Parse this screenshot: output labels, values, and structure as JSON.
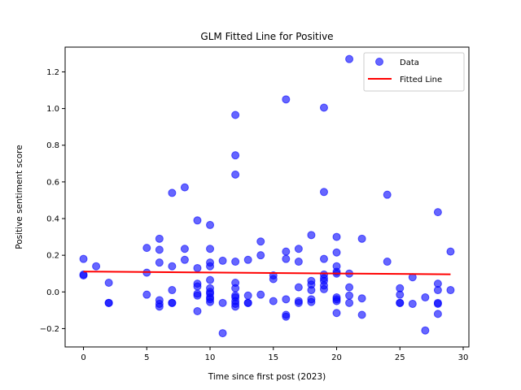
{
  "chart_data": {
    "type": "scatter",
    "title": "GLM Fitted Line for Positive",
    "xlabel": "Time since first post (2023)",
    "ylabel": "Positive sentiment score",
    "xlim": [
      -1.45,
      30.45
    ],
    "ylim": [
      -0.3,
      1.335
    ],
    "xticks": [
      0,
      5,
      10,
      15,
      20,
      25,
      30
    ],
    "yticks": [
      -0.2,
      0.0,
      0.2,
      0.4,
      0.6,
      0.8,
      1.0,
      1.2
    ],
    "ytick_labels": [
      "−0.2",
      "0.0",
      "0.2",
      "0.4",
      "0.6",
      "0.8",
      "1.0",
      "1.2"
    ],
    "grid": false,
    "legend_position": "top-right",
    "legend": [
      "Data",
      "Fitted Line"
    ],
    "colors": {
      "data": "#0000ff",
      "fit": "#ff0000"
    },
    "series": [
      {
        "name": "Data",
        "kind": "scatter",
        "points": [
          [
            0,
            0.18
          ],
          [
            0,
            0.09
          ],
          [
            0,
            0.095
          ],
          [
            1,
            0.14
          ],
          [
            2,
            0.05
          ],
          [
            2,
            -0.06
          ],
          [
            2,
            -0.06
          ],
          [
            5,
            0.24
          ],
          [
            5,
            0.105
          ],
          [
            5,
            -0.015
          ],
          [
            6,
            0.29
          ],
          [
            6,
            0.23
          ],
          [
            6,
            0.16
          ],
          [
            6,
            -0.045
          ],
          [
            6,
            -0.065
          ],
          [
            6,
            -0.08
          ],
          [
            7,
            0.54
          ],
          [
            7,
            0.14
          ],
          [
            7,
            0.01
          ],
          [
            7,
            -0.06
          ],
          [
            7,
            -0.06
          ],
          [
            8,
            0.57
          ],
          [
            8,
            0.235
          ],
          [
            8,
            0.175
          ],
          [
            9,
            0.39
          ],
          [
            9,
            0.13
          ],
          [
            9,
            0.045
          ],
          [
            9,
            0.03
          ],
          [
            9,
            -0.01
          ],
          [
            9,
            -0.02
          ],
          [
            9,
            -0.105
          ],
          [
            10,
            0.365
          ],
          [
            10,
            0.235
          ],
          [
            10,
            0.16
          ],
          [
            10,
            0.14
          ],
          [
            10,
            0.065
          ],
          [
            10,
            0.02
          ],
          [
            10,
            0.0
          ],
          [
            10,
            -0.01
          ],
          [
            10,
            -0.03
          ],
          [
            10,
            -0.04
          ],
          [
            10,
            -0.055
          ],
          [
            11,
            0.17
          ],
          [
            11,
            -0.06
          ],
          [
            11,
            -0.225
          ],
          [
            12,
            0.965
          ],
          [
            12,
            0.745
          ],
          [
            12,
            0.64
          ],
          [
            12,
            0.165
          ],
          [
            12,
            0.05
          ],
          [
            12,
            0.02
          ],
          [
            12,
            -0.02
          ],
          [
            12,
            -0.03
          ],
          [
            12,
            -0.05
          ],
          [
            12,
            -0.065
          ],
          [
            12,
            -0.08
          ],
          [
            13,
            0.175
          ],
          [
            13,
            -0.02
          ],
          [
            13,
            -0.06
          ],
          [
            13,
            -0.06
          ],
          [
            14,
            0.275
          ],
          [
            14,
            0.2
          ],
          [
            14,
            -0.015
          ],
          [
            15,
            0.09
          ],
          [
            15,
            0.07
          ],
          [
            15,
            -0.05
          ],
          [
            16,
            1.05
          ],
          [
            16,
            0.22
          ],
          [
            16,
            0.18
          ],
          [
            16,
            -0.04
          ],
          [
            16,
            -0.125
          ],
          [
            16,
            -0.135
          ],
          [
            17,
            0.235
          ],
          [
            17,
            0.165
          ],
          [
            17,
            0.025
          ],
          [
            17,
            -0.05
          ],
          [
            17,
            -0.06
          ],
          [
            18,
            0.31
          ],
          [
            18,
            0.06
          ],
          [
            18,
            0.04
          ],
          [
            18,
            0.01
          ],
          [
            18,
            -0.04
          ],
          [
            18,
            -0.055
          ],
          [
            19,
            1.005
          ],
          [
            19,
            0.545
          ],
          [
            19,
            0.18
          ],
          [
            19,
            0.095
          ],
          [
            19,
            0.075
          ],
          [
            19,
            0.06
          ],
          [
            19,
            0.035
          ],
          [
            19,
            0.015
          ],
          [
            20,
            0.3
          ],
          [
            20,
            0.215
          ],
          [
            20,
            0.14
          ],
          [
            20,
            0.11
          ],
          [
            20,
            0.1
          ],
          [
            20,
            -0.03
          ],
          [
            20,
            -0.04
          ],
          [
            20,
            -0.05
          ],
          [
            20,
            -0.115
          ],
          [
            21,
            1.27
          ],
          [
            21,
            0.1
          ],
          [
            21,
            0.025
          ],
          [
            21,
            -0.02
          ],
          [
            21,
            -0.06
          ],
          [
            22,
            0.29
          ],
          [
            22,
            -0.035
          ],
          [
            22,
            -0.125
          ],
          [
            24,
            0.53
          ],
          [
            24,
            0.165
          ],
          [
            25,
            0.02
          ],
          [
            25,
            -0.015
          ],
          [
            25,
            -0.06
          ],
          [
            25,
            -0.06
          ],
          [
            26,
            0.08
          ],
          [
            26,
            -0.065
          ],
          [
            27,
            -0.03
          ],
          [
            27,
            -0.21
          ],
          [
            28,
            0.435
          ],
          [
            28,
            0.045
          ],
          [
            28,
            0.01
          ],
          [
            28,
            -0.06
          ],
          [
            28,
            -0.065
          ],
          [
            28,
            -0.12
          ],
          [
            29,
            0.22
          ],
          [
            29,
            0.01
          ]
        ]
      },
      {
        "name": "Fitted Line",
        "kind": "line",
        "x": [
          0,
          29
        ],
        "y": [
          0.111,
          0.096
        ]
      }
    ]
  }
}
